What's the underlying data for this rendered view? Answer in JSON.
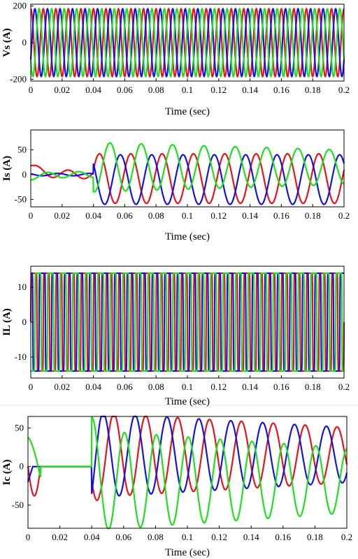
{
  "colors": {
    "phase_a": "#e8141b",
    "phase_b": "#1414e0",
    "phase_c": "#1ee01e",
    "frame": "#000000"
  },
  "chart_data": [
    {
      "type": "line",
      "id": "vs",
      "ylabel": "Vs (A)",
      "xlabel": "Time (sec)",
      "xlim": [
        0,
        0.2
      ],
      "ylim": [
        -210,
        210
      ],
      "xticks": [
        "0",
        "0.02",
        "0.04",
        "0.06",
        "0.08",
        "0.1",
        "0.12",
        "0.14",
        "0.16",
        "0.18",
        "0.2"
      ],
      "yticks": [
        "-200",
        "0",
        "200"
      ],
      "ytick_values": [
        -200,
        0,
        200
      ],
      "waveform": {
        "kind": "sine",
        "amplitude": 185,
        "frequency_hz": 125
      },
      "series": [
        {
          "color": "red",
          "phase_deg": 90
        },
        {
          "color": "blue",
          "phase_deg": -30
        },
        {
          "color": "green",
          "phase_deg": 210
        }
      ]
    },
    {
      "type": "line",
      "id": "is",
      "ylabel": "Is (A)",
      "xlabel": "Time (sec)",
      "xlim": [
        0,
        0.2
      ],
      "ylim": [
        -65,
        90
      ],
      "xticks": [
        "0",
        "0.02",
        "0.04",
        "0.06",
        "0.08",
        "0.1",
        "0.12",
        "0.14",
        "0.16",
        "0.18",
        "0.2"
      ],
      "yticks": [
        "-50",
        "0",
        "50"
      ],
      "ytick_values": [
        -50,
        0,
        50
      ],
      "waveform": {
        "kind": "transient_sine",
        "switch_time": 0.04,
        "pre_amplitude": 10,
        "post_amplitude": 50,
        "frequency_hz": 50
      },
      "series": [
        {
          "color": "red",
          "phase_deg": 20,
          "pre_offset": 15,
          "pre_amplitude": 28,
          "offset": -8,
          "amplitude_decay": 0
        },
        {
          "color": "blue",
          "phase_deg": 140,
          "pre_offset": 0,
          "pre_amplitude": 8,
          "offset": -10,
          "amplitude_decay": 0
        },
        {
          "color": "green",
          "phase_deg": 260,
          "pre_offset": -5,
          "pre_amplitude": 20,
          "offset": 15,
          "amplitude_decay": 0.3
        }
      ]
    },
    {
      "type": "line",
      "id": "il",
      "ylabel": "IL (A)",
      "xlabel": "Time (sec)",
      "xlim": [
        0,
        0.2
      ],
      "ylim": [
        -16,
        16
      ],
      "xticks": [
        "0",
        "0.02",
        "0.04",
        "0.06",
        "0.08",
        "0.1",
        "0.12",
        "0.14",
        "0.16",
        "0.18",
        "0.2"
      ],
      "yticks": [
        "-10",
        "0",
        "10"
      ],
      "ytick_values": [
        -10,
        0,
        10
      ],
      "waveform": {
        "kind": "square",
        "amplitude": 14,
        "frequency_hz": 125
      },
      "series": [
        {
          "color": "red",
          "phase_deg": 0
        },
        {
          "color": "blue",
          "phase_deg": 120
        },
        {
          "color": "green",
          "phase_deg": 240
        }
      ]
    },
    {
      "type": "line",
      "id": "ic",
      "ylabel": "Ic (A)",
      "xlabel": "Time (sec)",
      "xlim": [
        0,
        0.2
      ],
      "ylim": [
        -80,
        65
      ],
      "xticks": [
        "0",
        "0.02",
        "0.04",
        "0.06",
        "0.08",
        "0.1",
        "0.12",
        "0.14",
        "0.16",
        "0.18",
        "0.2"
      ],
      "yticks": [
        "-50",
        "0",
        "50"
      ],
      "ytick_values": [
        -50,
        0,
        50
      ],
      "waveform": {
        "kind": "compensator",
        "switch_time": 0.04,
        "frequency_hz": 50
      },
      "series": [
        {
          "color": "red",
          "phase_deg": 200,
          "pre": "dip",
          "amplitude": 55,
          "offset": 15
        },
        {
          "color": "blue",
          "phase_deg": 320,
          "pre": "flat",
          "amplitude": 55,
          "offset": 15
        },
        {
          "color": "green",
          "phase_deg": 80,
          "pre": "peak",
          "amplitude": 65,
          "offset": -18
        }
      ]
    }
  ]
}
